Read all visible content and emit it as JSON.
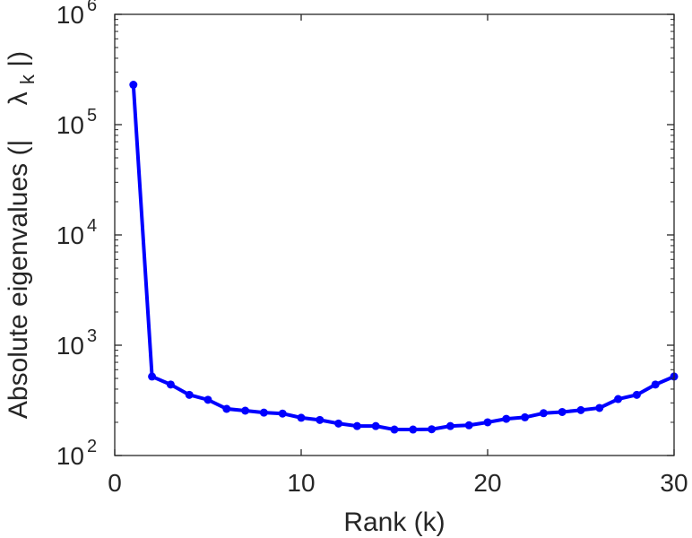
{
  "chart_data": {
    "type": "line",
    "xlabel": "Rank (k)",
    "ylabel_prefix": "Absolute eigenvalues (|",
    "ylabel_symbol": "λ",
    "ylabel_subscript": "k",
    "ylabel_suffix": "|)",
    "x_scale": "linear",
    "y_scale": "log",
    "xlim": [
      0,
      30
    ],
    "ylim": [
      100,
      1000000
    ],
    "x_ticks": [
      0,
      10,
      20,
      30
    ],
    "x_tick_labels": [
      "0",
      "10",
      "20",
      "30"
    ],
    "y_ticks": [
      100,
      1000,
      10000,
      100000,
      1000000
    ],
    "y_tick_base": "10",
    "y_tick_exponents": [
      "2",
      "3",
      "4",
      "5",
      "6"
    ],
    "grid": false,
    "box": true,
    "line_color": "#0000ff",
    "axis_color": "#262626",
    "series": [
      {
        "x": [
          1,
          2,
          3,
          4,
          5,
          6,
          7,
          8,
          9,
          10,
          11,
          12,
          13,
          14,
          15,
          16,
          17,
          18,
          19,
          20,
          21,
          22,
          23,
          24,
          25,
          26,
          27,
          28,
          29,
          30
        ],
        "values": [
          230000,
          520,
          440,
          355,
          320,
          265,
          255,
          245,
          240,
          220,
          210,
          195,
          185,
          185,
          172,
          172,
          173,
          185,
          188,
          200,
          215,
          222,
          242,
          248,
          258,
          270,
          325,
          355,
          440,
          520
        ]
      }
    ]
  }
}
